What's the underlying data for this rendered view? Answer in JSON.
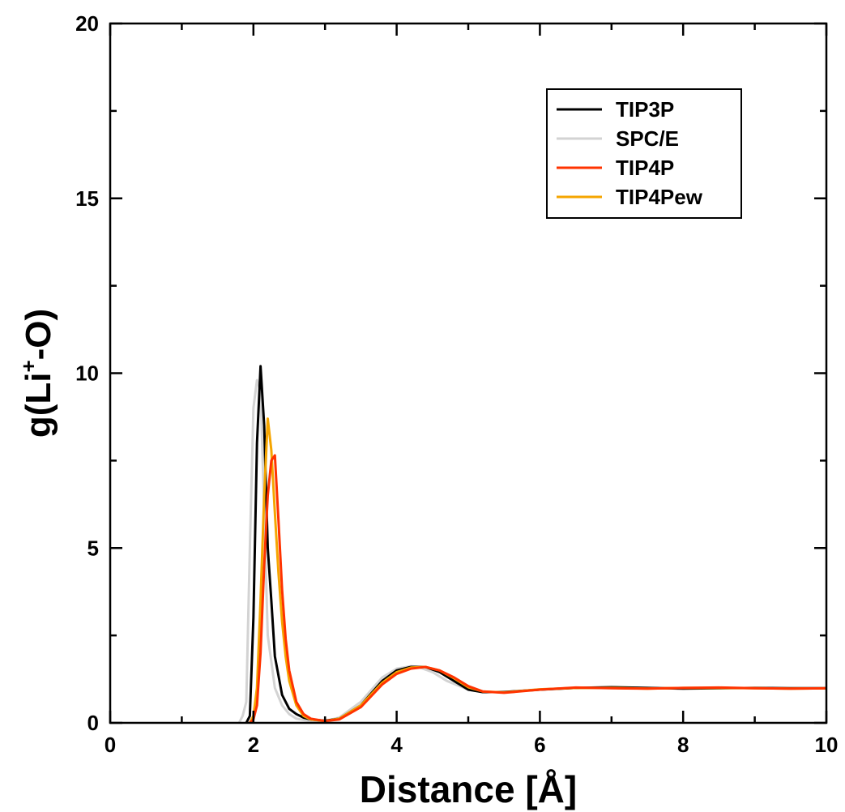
{
  "chart_data": {
    "type": "line",
    "xlabel": "Distance [Å]",
    "ylabel": {
      "prefix": "g(Li",
      "sup": "+",
      "suffix": "-O)"
    },
    "xlim": [
      0,
      10
    ],
    "ylim": [
      0,
      20
    ],
    "x_ticks": [
      "0",
      "2",
      "4",
      "6",
      "8",
      "10"
    ],
    "y_ticks": [
      "0",
      "5",
      "10",
      "15",
      "20"
    ],
    "grid": false,
    "legend_position": "top-right",
    "series": [
      {
        "name": "TIP3P",
        "color": "#000000",
        "x": [
          1.9,
          1.95,
          2.0,
          2.05,
          2.1,
          2.15,
          2.2,
          2.25,
          2.3,
          2.4,
          2.5,
          2.6,
          2.7,
          2.8,
          3.0,
          3.2,
          3.5,
          3.8,
          4.0,
          4.2,
          4.4,
          4.6,
          4.8,
          5.0,
          5.2,
          5.5,
          6.0,
          6.5,
          7.0,
          7.5,
          8.0,
          8.5,
          9.0,
          9.5,
          10.0
        ],
        "y": [
          0.0,
          0.2,
          3.0,
          8.0,
          10.2,
          8.5,
          5.0,
          3.5,
          1.9,
          0.8,
          0.4,
          0.25,
          0.15,
          0.1,
          0.06,
          0.12,
          0.5,
          1.2,
          1.5,
          1.6,
          1.6,
          1.45,
          1.2,
          0.95,
          0.88,
          0.88,
          0.95,
          1.0,
          1.02,
          1.0,
          0.98,
          0.99,
          1.0,
          0.99,
          0.99
        ]
      },
      {
        "name": "SPC/E",
        "color": "#d3d3d3",
        "x": [
          1.8,
          1.85,
          1.9,
          1.95,
          2.0,
          2.05,
          2.1,
          2.15,
          2.2,
          2.3,
          2.4,
          2.5,
          2.6,
          2.7,
          2.8,
          3.0,
          3.2,
          3.5,
          3.8,
          4.0,
          4.2,
          4.3,
          4.5,
          4.7,
          5.0,
          5.2,
          5.5,
          6.0,
          6.5,
          7.0,
          7.5,
          8.0,
          8.5,
          9.0,
          9.5,
          10.0
        ],
        "y": [
          0.0,
          0.2,
          0.6,
          5.0,
          9.0,
          9.8,
          9.5,
          6.0,
          2.5,
          1.0,
          0.5,
          0.25,
          0.12,
          0.08,
          0.06,
          0.05,
          0.15,
          0.6,
          1.3,
          1.55,
          1.62,
          1.6,
          1.45,
          1.2,
          0.95,
          0.88,
          0.88,
          0.96,
          1.0,
          1.01,
          0.99,
          0.99,
          1.0,
          0.99,
          0.98,
          0.99
        ]
      },
      {
        "name": "TIP4P",
        "color": "#ff3300",
        "x": [
          1.95,
          2.0,
          2.05,
          2.1,
          2.15,
          2.2,
          2.25,
          2.3,
          2.35,
          2.4,
          2.45,
          2.5,
          2.6,
          2.7,
          2.8,
          3.0,
          3.2,
          3.5,
          3.8,
          4.0,
          4.2,
          4.4,
          4.6,
          4.8,
          5.0,
          5.2,
          5.5,
          6.0,
          6.5,
          7.0,
          7.5,
          8.0,
          8.5,
          9.0,
          9.5,
          10.0
        ],
        "y": [
          0.0,
          0.1,
          0.5,
          2.0,
          4.5,
          6.5,
          7.5,
          7.65,
          5.8,
          3.8,
          2.4,
          1.5,
          0.6,
          0.25,
          0.12,
          0.05,
          0.1,
          0.45,
          1.1,
          1.4,
          1.55,
          1.6,
          1.5,
          1.3,
          1.05,
          0.9,
          0.86,
          0.95,
          1.01,
          0.99,
          0.98,
          1.0,
          1.01,
          0.99,
          0.98,
          0.99
        ]
      },
      {
        "name": "TIP4Pew",
        "color": "#f5a500",
        "x": [
          1.95,
          2.0,
          2.05,
          2.1,
          2.15,
          2.2,
          2.25,
          2.3,
          2.35,
          2.4,
          2.45,
          2.5,
          2.6,
          2.7,
          2.8,
          3.0,
          3.2,
          3.5,
          3.8,
          4.0,
          4.2,
          4.4,
          4.6,
          4.8,
          5.0,
          5.2,
          5.5,
          6.0,
          6.5,
          7.0,
          7.5,
          8.0,
          8.5,
          9.0,
          9.5,
          10.0
        ],
        "y": [
          0.0,
          0.2,
          1.0,
          3.5,
          6.5,
          8.7,
          7.8,
          6.0,
          4.3,
          2.9,
          1.9,
          1.2,
          0.5,
          0.2,
          0.1,
          0.05,
          0.12,
          0.5,
          1.15,
          1.45,
          1.58,
          1.6,
          1.5,
          1.28,
          1.02,
          0.9,
          0.87,
          0.96,
          1.0,
          1.0,
          0.98,
          1.0,
          1.0,
          0.99,
          0.98,
          0.99
        ]
      }
    ]
  }
}
